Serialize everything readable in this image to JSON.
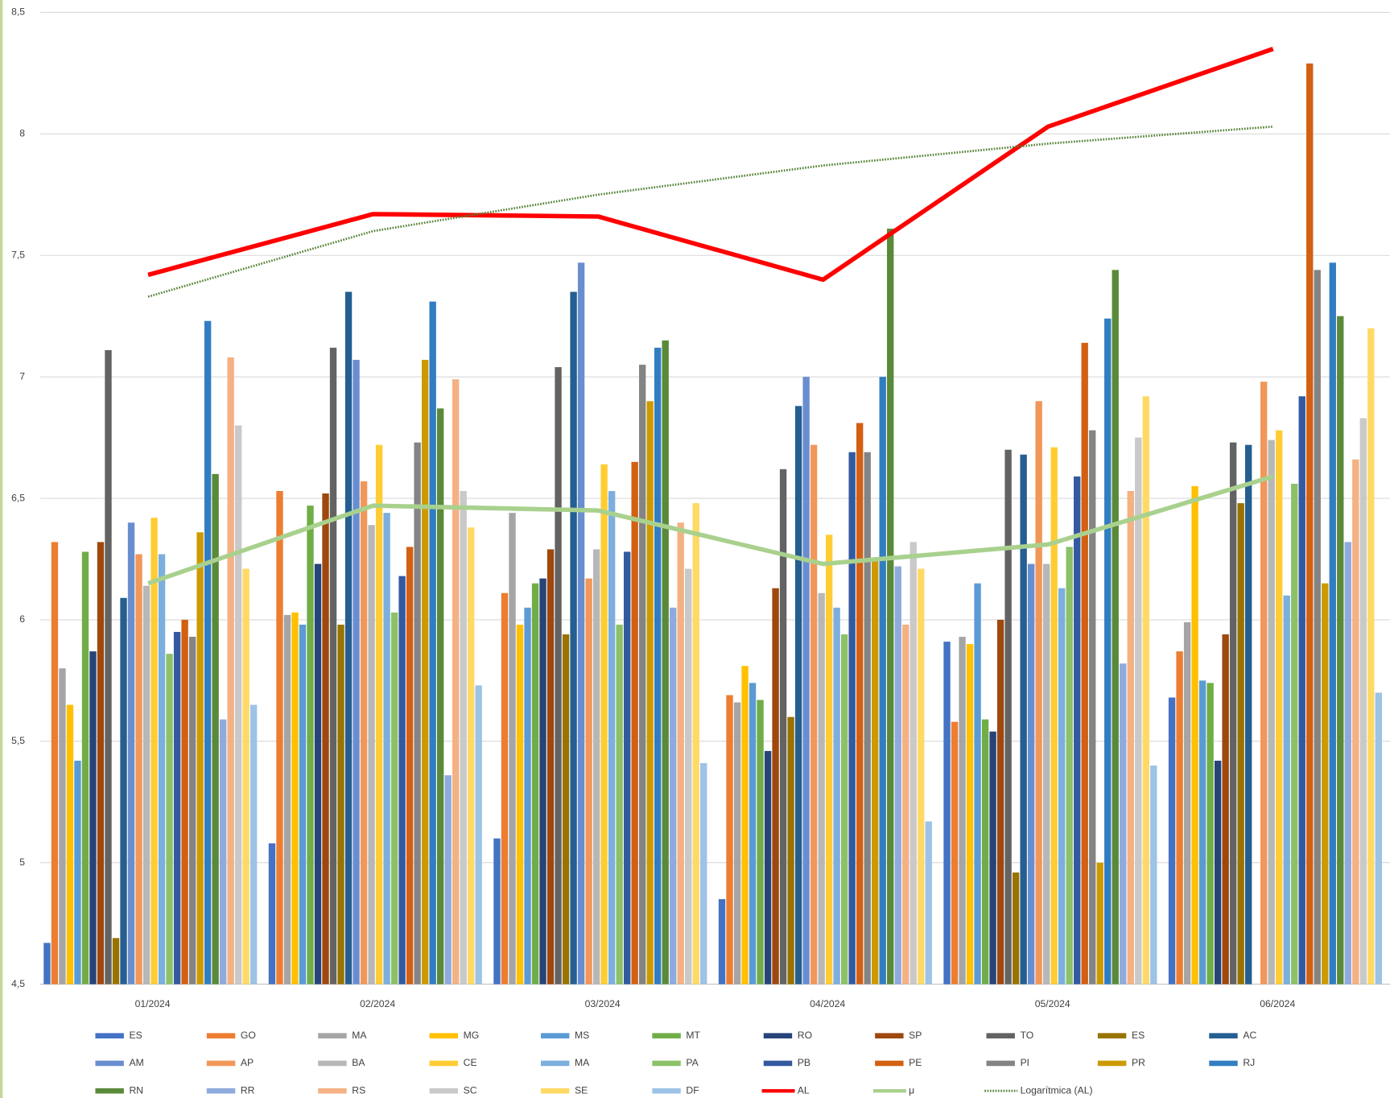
{
  "chart_data": {
    "type": "bar",
    "categories": [
      "01/2024",
      "02/2024",
      "03/2024",
      "04/2024",
      "05/2024",
      "06/2024"
    ],
    "ylim": [
      4.5,
      8.5
    ],
    "yticks": [
      {
        "value": 4.5,
        "label": "4,5"
      },
      5,
      {
        "value": 5.5,
        "label": "5,5"
      },
      6,
      {
        "value": 6.5,
        "label": "6,5"
      },
      7,
      {
        "value": 7.5,
        "label": "7,5"
      },
      8,
      {
        "value": 8.5,
        "label": "8,5"
      }
    ],
    "grid": true,
    "legend": "bottom",
    "series": [
      {
        "name": "ES",
        "color": "#4472c4",
        "values": [
          4.67,
          5.08,
          5.1,
          4.85,
          5.91,
          5.68
        ]
      },
      {
        "name": "GO",
        "color": "#ed7d31",
        "values": [
          6.32,
          6.53,
          6.11,
          5.69,
          5.58,
          5.87
        ]
      },
      {
        "name": "MA",
        "color": "#a5a5a5",
        "values": [
          5.8,
          6.02,
          6.44,
          5.66,
          5.93,
          5.99
        ]
      },
      {
        "name": "MG",
        "color": "#ffc000",
        "values": [
          5.65,
          6.03,
          5.98,
          5.81,
          5.9,
          6.55
        ]
      },
      {
        "name": "MS",
        "color": "#5b9bd5",
        "values": [
          5.42,
          5.98,
          6.05,
          5.74,
          6.15,
          5.75
        ]
      },
      {
        "name": "MT",
        "color": "#70ad47",
        "values": [
          6.28,
          6.47,
          6.15,
          5.67,
          5.59,
          5.74
        ]
      },
      {
        "name": "RO",
        "color": "#264478",
        "values": [
          5.87,
          6.23,
          6.17,
          5.46,
          5.54,
          5.42
        ]
      },
      {
        "name": "SP",
        "color": "#9e480e",
        "values": [
          6.32,
          6.52,
          6.29,
          6.13,
          6.0,
          5.94
        ]
      },
      {
        "name": "TO",
        "color": "#636363",
        "values": [
          7.11,
          7.12,
          7.04,
          6.62,
          6.7,
          6.73
        ]
      },
      {
        "name": "ES",
        "color": "#997300",
        "values": [
          4.69,
          5.98,
          5.94,
          5.6,
          4.96,
          6.48
        ]
      },
      {
        "name": "AC",
        "color": "#255e91",
        "values": [
          6.09,
          7.35,
          7.35,
          6.88,
          6.68,
          6.72
        ]
      },
      {
        "name": "AM",
        "color": "#698ed0",
        "values": [
          6.4,
          7.07,
          7.47,
          7.0,
          6.23,
          null
        ]
      },
      {
        "name": "AP",
        "color": "#f1975a",
        "values": [
          6.27,
          6.57,
          6.17,
          6.72,
          6.9,
          6.98
        ]
      },
      {
        "name": "BA",
        "color": "#b7b7b7",
        "values": [
          6.14,
          6.39,
          6.29,
          6.11,
          6.23,
          6.74
        ]
      },
      {
        "name": "CE",
        "color": "#ffcd33",
        "values": [
          6.42,
          6.72,
          6.64,
          6.35,
          6.71,
          6.78
        ]
      },
      {
        "name": "MA",
        "color": "#7cafdd",
        "values": [
          6.27,
          6.44,
          6.53,
          6.05,
          6.13,
          6.1
        ]
      },
      {
        "name": "PA",
        "color": "#8cc168",
        "values": [
          5.86,
          6.03,
          5.98,
          5.94,
          6.3,
          6.56
        ]
      },
      {
        "name": "PB",
        "color": "#335aa1",
        "values": [
          5.95,
          6.18,
          6.28,
          6.69,
          6.59,
          6.92
        ]
      },
      {
        "name": "PE",
        "color": "#d26012",
        "values": [
          6.0,
          6.3,
          6.65,
          6.81,
          7.14,
          8.29
        ]
      },
      {
        "name": "PI",
        "color": "#848484",
        "values": [
          5.93,
          6.73,
          7.05,
          6.69,
          6.78,
          7.44
        ]
      },
      {
        "name": "PR",
        "color": "#cc9a00",
        "values": [
          6.36,
          7.07,
          6.9,
          6.25,
          5.0,
          6.15
        ]
      },
      {
        "name": "RJ",
        "color": "#327dc2",
        "values": [
          7.23,
          7.31,
          7.12,
          7.0,
          7.24,
          7.47
        ]
      },
      {
        "name": "RN",
        "color": "#5a8a39",
        "values": [
          6.6,
          6.87,
          7.15,
          7.61,
          7.44,
          7.25
        ]
      },
      {
        "name": "RR",
        "color": "#8faadc",
        "values": [
          5.59,
          5.36,
          6.05,
          6.22,
          5.82,
          6.32
        ]
      },
      {
        "name": "RS",
        "color": "#f4b183",
        "values": [
          7.08,
          6.99,
          6.4,
          5.98,
          6.53,
          6.66
        ]
      },
      {
        "name": "SC",
        "color": "#c9c9c9",
        "values": [
          6.8,
          6.53,
          6.21,
          6.32,
          6.75,
          6.83
        ]
      },
      {
        "name": "SE",
        "color": "#ffd966",
        "values": [
          6.21,
          6.38,
          6.48,
          6.21,
          6.92,
          7.2
        ]
      },
      {
        "name": "DF",
        "color": "#9dc3e6",
        "values": [
          5.65,
          5.73,
          5.41,
          5.17,
          5.4,
          5.7
        ]
      },
      {
        "name": "AL",
        "color": "#ff0000",
        "type": "line",
        "values": [
          7.42,
          7.67,
          7.66,
          7.4,
          8.03,
          8.35
        ]
      },
      {
        "name": "μ",
        "color": "#a9d18e",
        "type": "line",
        "values": [
          6.15,
          6.47,
          6.45,
          6.23,
          6.31,
          6.59
        ]
      },
      {
        "name": "Logarítmica (AL)",
        "color": "#548235",
        "type": "line",
        "dotted": true,
        "values": [
          7.33,
          7.6,
          7.75,
          7.87,
          7.96,
          8.03
        ]
      }
    ]
  }
}
